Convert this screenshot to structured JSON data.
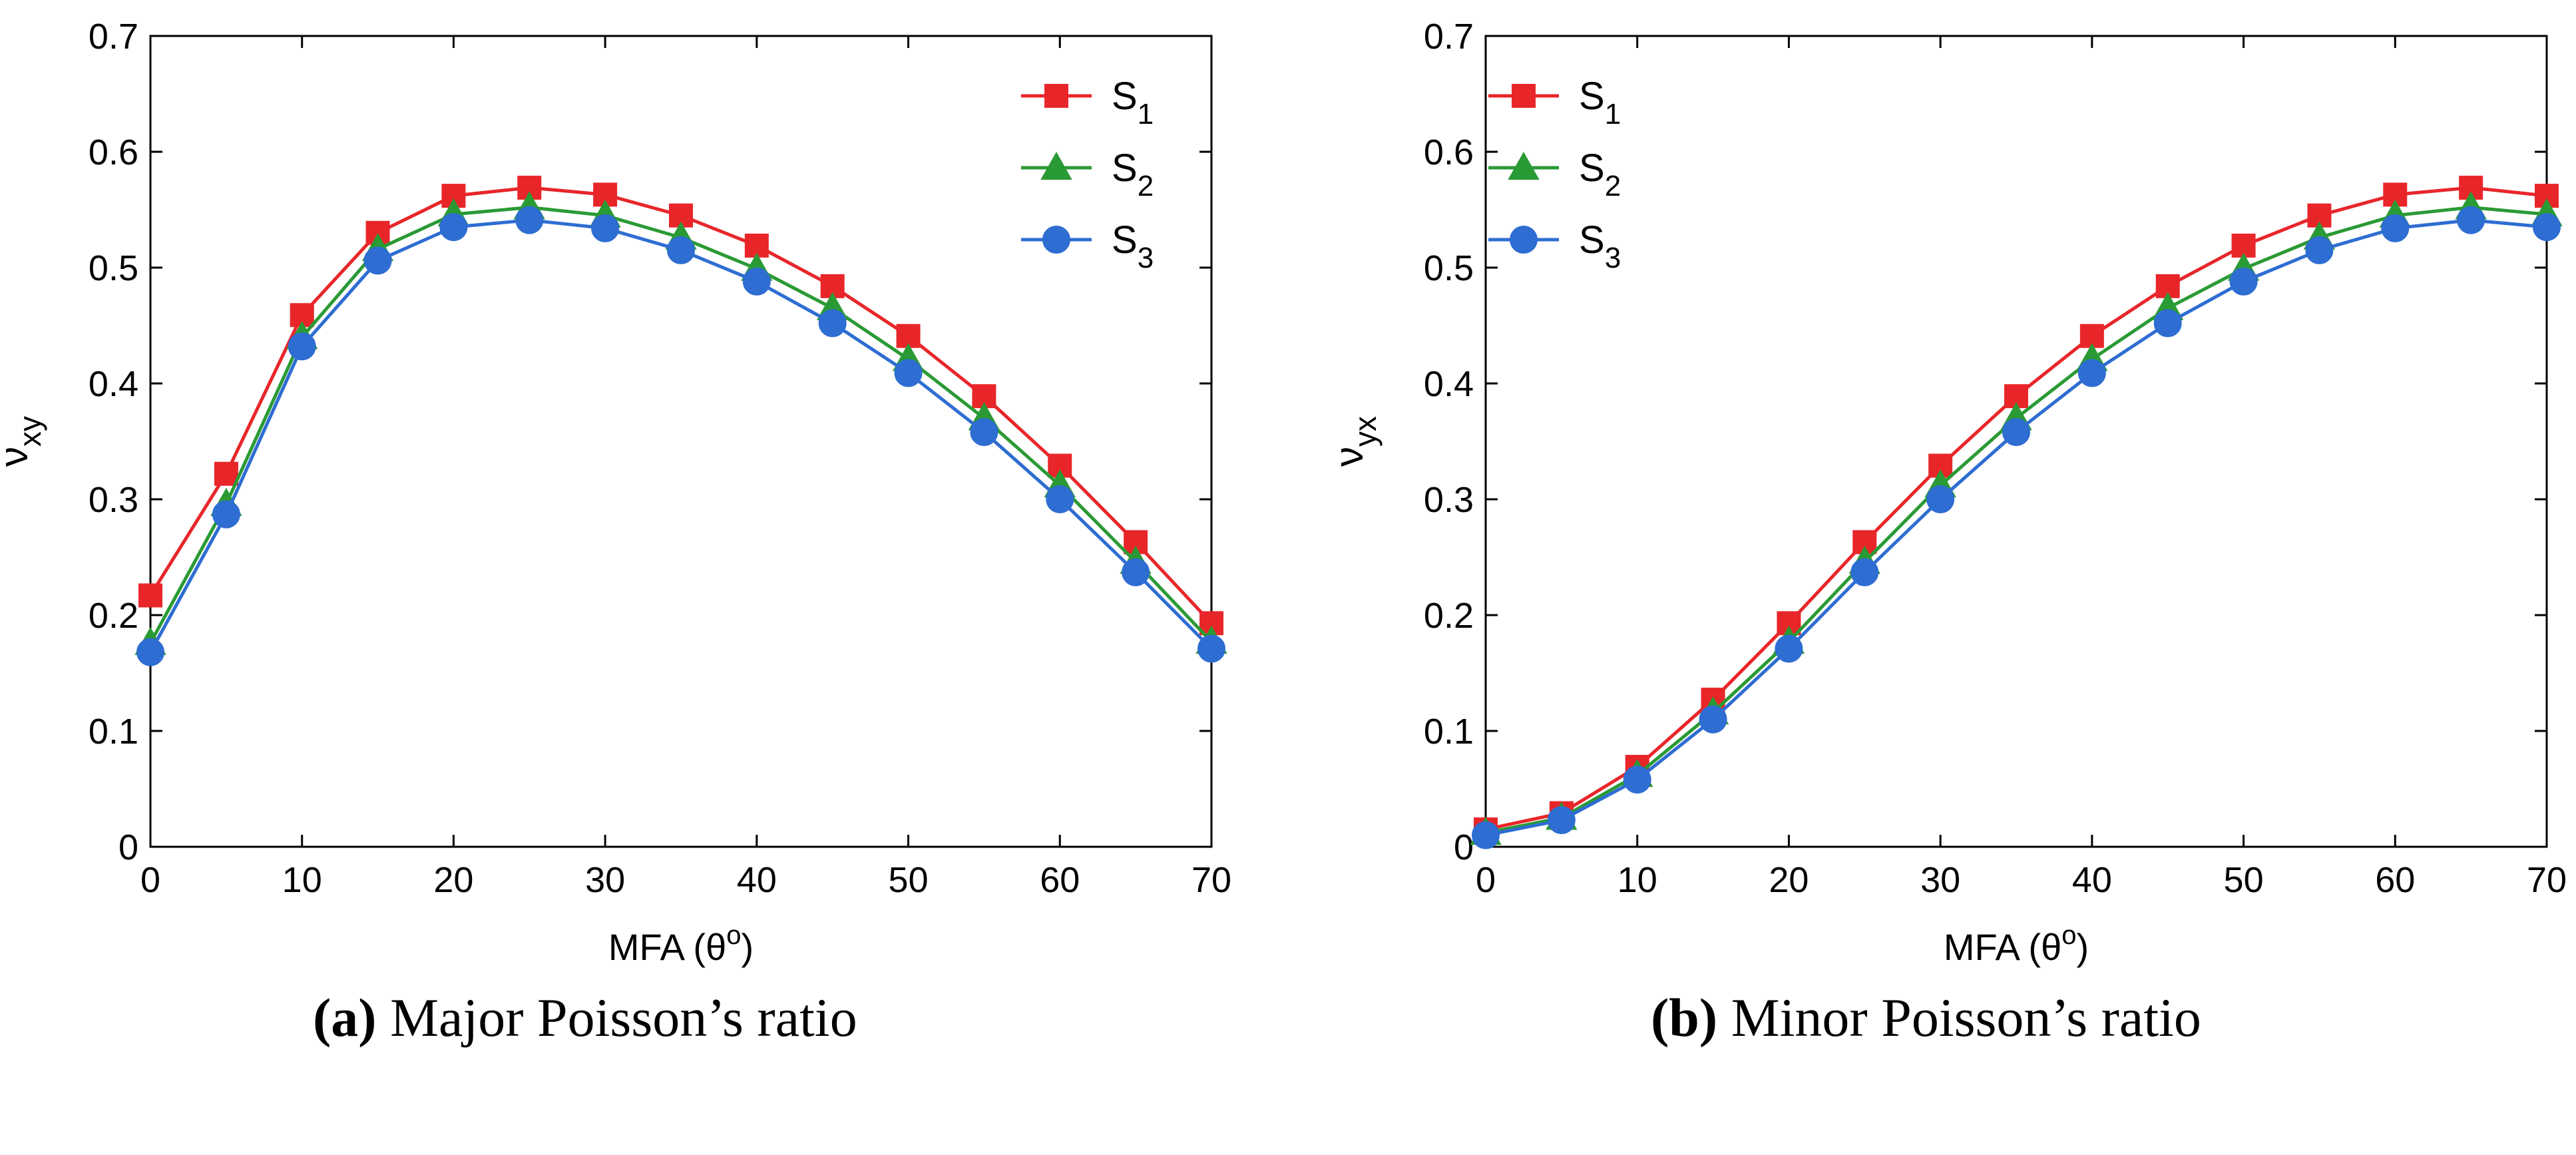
{
  "chart_data": [
    {
      "type": "line",
      "panel": "a",
      "caption_tag": "(a)",
      "caption_text": "Major Poisson’s ratio",
      "xlabel": "MFA (θ",
      "xlabel_sup": "o",
      "xlabel_close": ")",
      "ylabel_main": "ν",
      "ylabel_sub": "xy",
      "xlim": [
        0,
        70
      ],
      "ylim": [
        0,
        0.7
      ],
      "xticks": [
        0,
        10,
        20,
        30,
        40,
        50,
        60,
        70
      ],
      "yticks": [
        0,
        0.1,
        0.2,
        0.3,
        0.4,
        0.5,
        0.6,
        0.7
      ],
      "xtick_labels": [
        "0",
        "10",
        "20",
        "30",
        "40",
        "50",
        "60",
        "70"
      ],
      "ytick_labels": [
        "0",
        "0.1",
        "0.2",
        "0.3",
        "0.4",
        "0.5",
        "0.6",
        "0.7"
      ],
      "grid": false,
      "legend_position": "top-right",
      "x": [
        0,
        5,
        10,
        15,
        20,
        25,
        30,
        35,
        40,
        45,
        50,
        55,
        60,
        65,
        70
      ],
      "series": [
        {
          "name": "S",
          "sub": "1",
          "marker": "square",
          "color": "#e8262a",
          "values": [
            0.217,
            0.322,
            0.459,
            0.53,
            0.562,
            0.569,
            0.563,
            0.545,
            0.519,
            0.484,
            0.441,
            0.389,
            0.329,
            0.263,
            0.193
          ]
        },
        {
          "name": "S",
          "sub": "2",
          "marker": "triangle",
          "color": "#2a9a35",
          "values": [
            0.176,
            0.296,
            0.44,
            0.516,
            0.546,
            0.552,
            0.545,
            0.526,
            0.499,
            0.465,
            0.421,
            0.37,
            0.312,
            0.246,
            0.177
          ]
        },
        {
          "name": "S",
          "sub": "3",
          "marker": "circle",
          "color": "#2e6dd2",
          "values": [
            0.168,
            0.287,
            0.432,
            0.506,
            0.535,
            0.541,
            0.534,
            0.515,
            0.488,
            0.452,
            0.409,
            0.358,
            0.3,
            0.237,
            0.171
          ]
        }
      ]
    },
    {
      "type": "line",
      "panel": "b",
      "caption_tag": "(b)",
      "caption_text": "Minor Poisson’s ratio",
      "xlabel": "MFA (θ",
      "xlabel_sup": "o",
      "xlabel_close": ")",
      "ylabel_main": "ν",
      "ylabel_sub": "yx",
      "xlim": [
        0,
        70
      ],
      "ylim": [
        0,
        0.7
      ],
      "xticks": [
        0,
        10,
        20,
        30,
        40,
        50,
        60,
        70
      ],
      "yticks": [
        0,
        0.1,
        0.2,
        0.3,
        0.4,
        0.5,
        0.6,
        0.7
      ],
      "xtick_labels": [
        "0",
        "10",
        "20",
        "30",
        "40",
        "50",
        "60",
        "70"
      ],
      "ytick_labels": [
        "0",
        "0.1",
        "0.2",
        "0.3",
        "0.4",
        "0.5",
        "0.6",
        "0.7"
      ],
      "grid": false,
      "legend_position": "top-left",
      "x": [
        0,
        5,
        10,
        15,
        20,
        25,
        30,
        35,
        40,
        45,
        50,
        55,
        60,
        65,
        70
      ],
      "series": [
        {
          "name": "S",
          "sub": "1",
          "marker": "square",
          "color": "#e8262a",
          "values": [
            0.015,
            0.029,
            0.069,
            0.127,
            0.193,
            0.263,
            0.329,
            0.389,
            0.441,
            0.484,
            0.519,
            0.545,
            0.563,
            0.569,
            0.562
          ]
        },
        {
          "name": "S",
          "sub": "2",
          "marker": "triangle",
          "color": "#2a9a35",
          "values": [
            0.012,
            0.025,
            0.062,
            0.116,
            0.177,
            0.246,
            0.312,
            0.37,
            0.421,
            0.465,
            0.499,
            0.526,
            0.545,
            0.552,
            0.546
          ]
        },
        {
          "name": "S",
          "sub": "3",
          "marker": "circle",
          "color": "#2e6dd2",
          "values": [
            0.01,
            0.023,
            0.058,
            0.11,
            0.171,
            0.237,
            0.3,
            0.358,
            0.409,
            0.452,
            0.488,
            0.515,
            0.534,
            0.541,
            0.535
          ]
        }
      ]
    }
  ]
}
